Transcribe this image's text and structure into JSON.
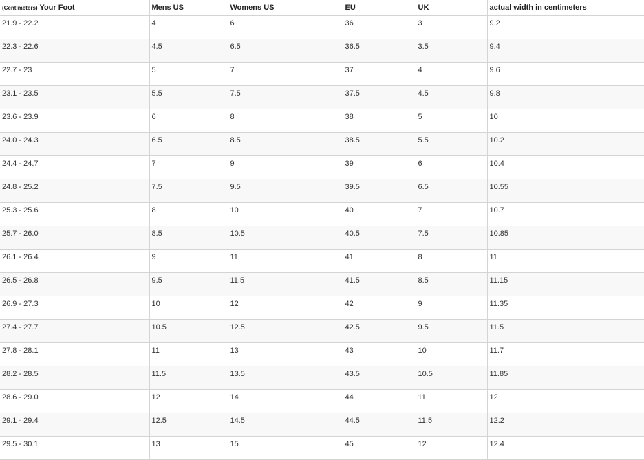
{
  "table": {
    "header_prefix": "(Centimeters)",
    "headers": [
      "Your Foot",
      "Mens US",
      "Womens US",
      "EU",
      "UK",
      "actual width in centimeters"
    ],
    "rows": [
      [
        "21.9 - 22.2",
        "4",
        "6",
        "36",
        "3",
        "9.2"
      ],
      [
        "22.3 - 22.6",
        "4.5",
        "6.5",
        "36.5",
        "3.5",
        "9.4"
      ],
      [
        "22.7 - 23",
        "5",
        "7",
        "37",
        "4",
        "9.6"
      ],
      [
        "23.1 - 23.5",
        "5.5",
        "7.5",
        "37.5",
        "4.5",
        "9.8"
      ],
      [
        "23.6 - 23.9",
        "6",
        "8",
        "38",
        "5",
        "10"
      ],
      [
        "24.0 - 24.3",
        "6.5",
        "8.5",
        "38.5",
        "5.5",
        "10.2"
      ],
      [
        "24.4 - 24.7",
        "7",
        "9",
        "39",
        "6",
        "10.4"
      ],
      [
        "24.8 - 25.2",
        "7.5",
        "9.5",
        "39.5",
        "6.5",
        "10.55"
      ],
      [
        "25.3 - 25.6",
        "8",
        "10",
        "40",
        "7",
        "10.7"
      ],
      [
        "25.7 - 26.0",
        "8.5",
        "10.5",
        "40.5",
        "7.5",
        "10.85"
      ],
      [
        "26.1 - 26.4",
        "9",
        "11",
        "41",
        "8",
        "11"
      ],
      [
        "26.5 - 26.8",
        "9.5",
        "11.5",
        "41.5",
        "8.5",
        "11.15"
      ],
      [
        "26.9 - 27.3",
        "10",
        "12",
        "42",
        "9",
        "11.35"
      ],
      [
        "27.4 - 27.7",
        "10.5",
        "12.5",
        "42.5",
        "9.5",
        "11.5"
      ],
      [
        "27.8 - 28.1",
        "11",
        "13",
        "43",
        "10",
        "11.7"
      ],
      [
        "28.2 - 28.5",
        "11.5",
        "13.5",
        "43.5",
        "10.5",
        "11.85"
      ],
      [
        "28.6 - 29.0",
        "12",
        "14",
        "44",
        "11",
        "12"
      ],
      [
        "29.1 - 29.4",
        "12.5",
        "14.5",
        "44.5",
        "11.5",
        "12.2"
      ],
      [
        "29.5 - 30.1",
        "13",
        "15",
        "45",
        "12",
        "12.4"
      ]
    ]
  }
}
